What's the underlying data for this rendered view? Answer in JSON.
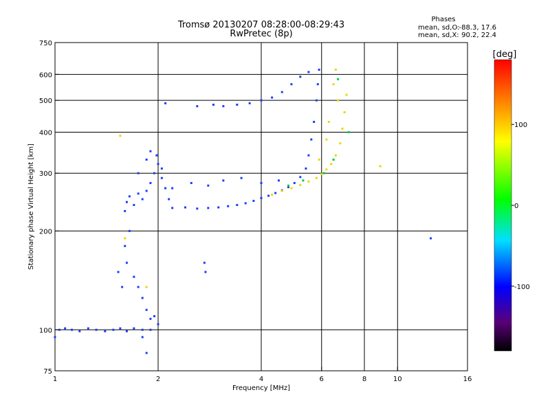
{
  "chart_data": {
    "type": "scatter",
    "title": "Tromsø 20130207 08:28:00-08:29:43",
    "subtitle": "RwPretec (8p)",
    "xlabel": "Frequency [MHz]",
    "ylabel": "Stationary phase Virtual Height [km]",
    "x_scale": "log",
    "y_scale": "log",
    "xlim": [
      1,
      16
    ],
    "ylim": [
      75,
      750
    ],
    "x_ticks": [
      1,
      2,
      4,
      6,
      8,
      10,
      16
    ],
    "y_ticks": [
      75,
      100,
      200,
      300,
      400,
      500,
      600,
      750
    ],
    "x_grid": [
      2,
      4,
      6,
      8,
      10
    ],
    "y_grid": [
      100,
      200,
      300,
      400,
      500,
      600
    ],
    "grid": true,
    "phase_stats": {
      "title": "Phases",
      "o_label": "mean, sd,O:",
      "o_values": "-88.3, 17.6",
      "x_label": "mean, sd,X:",
      "x_values": "90.2, 22.4"
    },
    "colorbar": {
      "label": "[deg]",
      "ticks": [
        "100",
        "0",
        "-100"
      ],
      "tick_values": [
        100,
        0,
        -100
      ],
      "range": [
        -180,
        180
      ]
    },
    "series": [
      {
        "mode": "O",
        "color_phase_deg": -100,
        "points": [
          [
            1.0,
            95
          ],
          [
            1.03,
            100
          ],
          [
            1.07,
            101
          ],
          [
            1.12,
            100
          ],
          [
            1.18,
            99
          ],
          [
            1.25,
            101
          ],
          [
            1.32,
            100
          ],
          [
            1.4,
            99
          ],
          [
            1.48,
            100
          ],
          [
            1.55,
            101
          ],
          [
            1.62,
            99
          ],
          [
            1.7,
            101
          ],
          [
            1.8,
            100
          ],
          [
            1.9,
            100
          ],
          [
            1.53,
            150
          ],
          [
            1.57,
            135
          ],
          [
            1.6,
            180
          ],
          [
            1.62,
            160
          ],
          [
            1.65,
            200
          ],
          [
            1.7,
            145
          ],
          [
            1.75,
            135
          ],
          [
            1.8,
            125
          ],
          [
            1.85,
            115
          ],
          [
            1.9,
            108
          ],
          [
            1.95,
            110
          ],
          [
            2.0,
            104
          ],
          [
            1.8,
            95
          ],
          [
            1.85,
            85
          ],
          [
            1.6,
            230
          ],
          [
            1.62,
            245
          ],
          [
            1.65,
            255
          ],
          [
            1.7,
            240
          ],
          [
            1.75,
            260
          ],
          [
            1.8,
            250
          ],
          [
            1.85,
            265
          ],
          [
            1.9,
            280
          ],
          [
            1.95,
            300
          ],
          [
            2.0,
            320
          ],
          [
            2.05,
            290
          ],
          [
            2.1,
            270
          ],
          [
            2.15,
            250
          ],
          [
            1.75,
            300
          ],
          [
            1.85,
            330
          ],
          [
            1.9,
            350
          ],
          [
            1.98,
            340
          ],
          [
            2.05,
            310
          ],
          [
            2.2,
            235
          ],
          [
            2.4,
            236
          ],
          [
            2.6,
            234
          ],
          [
            2.8,
            235
          ],
          [
            3.0,
            236
          ],
          [
            3.2,
            238
          ],
          [
            3.4,
            240
          ],
          [
            3.6,
            243
          ],
          [
            3.8,
            247
          ],
          [
            4.0,
            252
          ],
          [
            4.2,
            256
          ],
          [
            4.4,
            261
          ],
          [
            4.6,
            266
          ],
          [
            4.8,
            272
          ],
          [
            5.0,
            280
          ],
          [
            5.2,
            292
          ],
          [
            5.4,
            310
          ],
          [
            5.5,
            340
          ],
          [
            5.6,
            380
          ],
          [
            5.7,
            430
          ],
          [
            5.8,
            500
          ],
          [
            5.85,
            560
          ],
          [
            5.9,
            620
          ],
          [
            2.2,
            270
          ],
          [
            2.5,
            280
          ],
          [
            2.8,
            275
          ],
          [
            3.1,
            285
          ],
          [
            3.5,
            290
          ],
          [
            4.0,
            280
          ],
          [
            4.5,
            285
          ],
          [
            2.1,
            490
          ],
          [
            2.6,
            480
          ],
          [
            2.9,
            485
          ],
          [
            3.1,
            480
          ],
          [
            3.4,
            485
          ],
          [
            3.7,
            490
          ],
          [
            4.0,
            500
          ],
          [
            4.3,
            510
          ],
          [
            4.6,
            530
          ],
          [
            4.9,
            560
          ],
          [
            5.2,
            590
          ],
          [
            5.5,
            610
          ],
          [
            2.73,
            160
          ],
          [
            2.75,
            150
          ],
          [
            12.5,
            190
          ]
        ]
      },
      {
        "mode": "X",
        "color_phase_deg": 90,
        "points": [
          [
            4.3,
            258
          ],
          [
            4.6,
            265
          ],
          [
            4.9,
            270
          ],
          [
            5.2,
            276
          ],
          [
            5.5,
            283
          ],
          [
            5.8,
            290
          ],
          [
            6.0,
            298
          ],
          [
            6.2,
            308
          ],
          [
            6.4,
            320
          ],
          [
            6.6,
            340
          ],
          [
            6.8,
            370
          ],
          [
            6.9,
            410
          ],
          [
            7.0,
            460
          ],
          [
            7.1,
            520
          ],
          [
            6.3,
            430
          ],
          [
            6.5,
            560
          ],
          [
            6.6,
            620
          ],
          [
            6.7,
            500
          ],
          [
            6.2,
            380
          ],
          [
            5.9,
            330
          ],
          [
            8.9,
            315
          ],
          [
            1.55,
            390
          ],
          [
            1.6,
            190
          ],
          [
            1.85,
            135
          ]
        ]
      },
      {
        "mode": "X",
        "color_phase_deg": 10,
        "points": [
          [
            4.8,
            275
          ],
          [
            5.3,
            285
          ],
          [
            6.1,
            300
          ],
          [
            6.5,
            330
          ],
          [
            7.2,
            400
          ],
          [
            6.7,
            580
          ]
        ]
      }
    ]
  }
}
